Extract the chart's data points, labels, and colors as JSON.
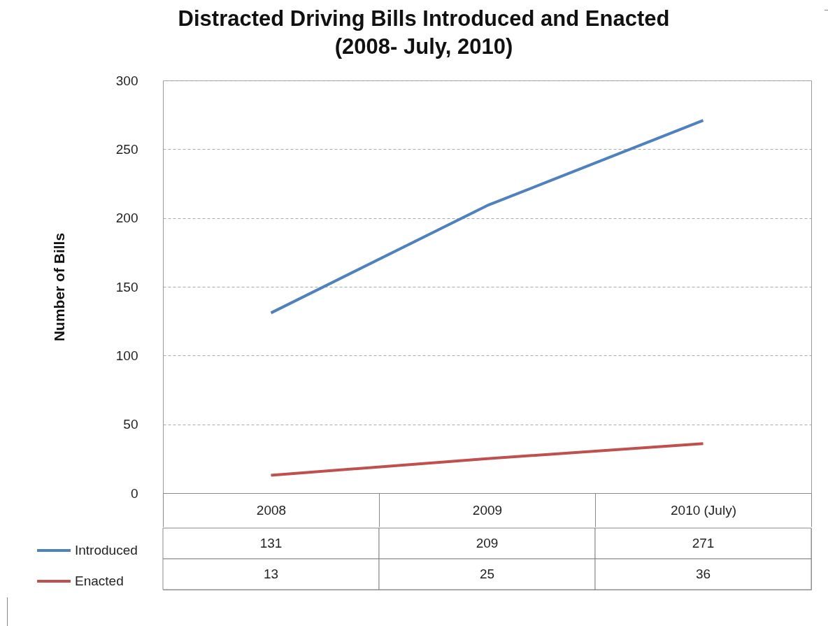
{
  "chart_data": {
    "type": "line",
    "title": "Distracted Driving Bills Introduced and Enacted\n(2008- July, 2010)",
    "ylabel": "Number of Bills",
    "categories": [
      "2008",
      "2009",
      "2010 (July)"
    ],
    "series": [
      {
        "name": "Introduced",
        "color": "#4f81bd",
        "values": [
          131,
          209,
          271
        ]
      },
      {
        "name": "Enacted",
        "color": "#c0504d",
        "values": [
          13,
          25,
          36
        ]
      }
    ],
    "ylim": [
      0,
      300
    ],
    "yticks": [
      0,
      50,
      100,
      150,
      200,
      250,
      300
    ],
    "grid": "y",
    "data_labels": true,
    "legend": "bottom left",
    "marker": "none",
    "line_style": "solid"
  }
}
